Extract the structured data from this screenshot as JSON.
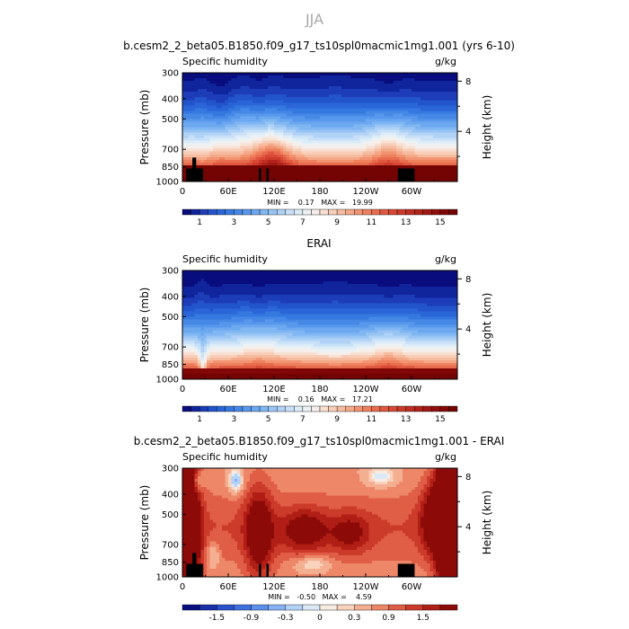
{
  "figure_title": "JJA",
  "chart_data": [
    {
      "type": "heatmap",
      "title": "b.cesm2_2_beta05.B1850.f09_g17_ts10spl0macmic1mg1.001 (yrs 6-10)",
      "left_label": "Specific humidity",
      "units": "g/kg",
      "ylabel": "Pressure (mb)",
      "ylabel_right": "Height (km)",
      "x_ticks": [
        "0",
        "60E",
        "120E",
        "180",
        "120W",
        "60W"
      ],
      "x_tick_lon": [
        0,
        60,
        120,
        180,
        240,
        300
      ],
      "xlim": [
        0,
        360
      ],
      "y_ticks": [
        "300",
        "400",
        "500",
        "700",
        "850",
        "1000"
      ],
      "y_tick_p": [
        300,
        400,
        500,
        700,
        850,
        1000
      ],
      "ylim": [
        1000,
        300
      ],
      "right_ticks": [
        "8",
        "4"
      ],
      "right_tick_km": [
        8,
        4
      ],
      "stats": "MIN =    0.17   MAX =   19.99",
      "min": 0.17,
      "max": 19.99,
      "field": "model",
      "colorbar_labels": [
        "1",
        "3",
        "5",
        "7",
        "9",
        "11",
        "13",
        "15"
      ],
      "colorbar_levels": [
        0.5,
        1,
        1.5,
        2,
        2.5,
        3,
        3.5,
        4,
        4.5,
        5,
        5.5,
        6,
        6.5,
        7,
        7.5,
        8,
        8.5,
        9,
        9.5,
        10,
        10.5,
        11,
        11.5,
        12,
        12.5,
        13,
        13.5,
        14,
        14.5,
        15,
        15.5,
        16
      ],
      "colors": [
        "#080c7c",
        "#10249c",
        "#1c3cb8",
        "#2254cc",
        "#2a66d8",
        "#3478e0",
        "#4688e6",
        "#5898ec",
        "#6ca8f0",
        "#80b6f2",
        "#98c4f4",
        "#b0d2f6",
        "#c8e0f8",
        "#dcecf8",
        "#ecf2f4",
        "#f6eeea",
        "#f8e0d2",
        "#f8ceb8",
        "#f6bca0",
        "#f4a888",
        "#f29472",
        "#ee805e",
        "#e86c4e",
        "#e05840",
        "#d84834",
        "#cc3a2a",
        "#be2e22",
        "#b0221a",
        "#a01812",
        "#900e0c",
        "#820808",
        "#740404"
      ]
    },
    {
      "type": "heatmap",
      "title": "ERAI",
      "left_label": "Specific humidity",
      "units": "g/kg",
      "ylabel": "Pressure (mb)",
      "ylabel_right": "Height (km)",
      "x_ticks": [
        "0",
        "60E",
        "120E",
        "180",
        "120W",
        "60W"
      ],
      "x_tick_lon": [
        0,
        60,
        120,
        180,
        240,
        300
      ],
      "xlim": [
        0,
        360
      ],
      "y_ticks": [
        "300",
        "400",
        "500",
        "700",
        "850",
        "1000"
      ],
      "y_tick_p": [
        300,
        400,
        500,
        700,
        850,
        1000
      ],
      "ylim": [
        1000,
        300
      ],
      "right_ticks": [
        "8",
        "4"
      ],
      "right_tick_km": [
        8,
        4
      ],
      "stats": "MIN =    0.16   MAX =   17.21",
      "min": 0.16,
      "max": 17.21,
      "field": "erai",
      "colorbar_labels": [
        "1",
        "3",
        "5",
        "7",
        "9",
        "11",
        "13",
        "15"
      ],
      "colorbar_levels": [
        0.5,
        1,
        1.5,
        2,
        2.5,
        3,
        3.5,
        4,
        4.5,
        5,
        5.5,
        6,
        6.5,
        7,
        7.5,
        8,
        8.5,
        9,
        9.5,
        10,
        10.5,
        11,
        11.5,
        12,
        12.5,
        13,
        13.5,
        14,
        14.5,
        15,
        15.5,
        16
      ],
      "colors": [
        "#080c7c",
        "#10249c",
        "#1c3cb8",
        "#2254cc",
        "#2a66d8",
        "#3478e0",
        "#4688e6",
        "#5898ec",
        "#6ca8f0",
        "#80b6f2",
        "#98c4f4",
        "#b0d2f6",
        "#c8e0f8",
        "#dcecf8",
        "#ecf2f4",
        "#f6eeea",
        "#f8e0d2",
        "#f8ceb8",
        "#f6bca0",
        "#f4a888",
        "#f29472",
        "#ee805e",
        "#e86c4e",
        "#e05840",
        "#d84834",
        "#cc3a2a",
        "#be2e22",
        "#b0221a",
        "#a01812",
        "#900e0c",
        "#820808",
        "#740404"
      ]
    },
    {
      "type": "heatmap",
      "title": "b.cesm2_2_beta05.B1850.f09_g17_ts10spl0macmic1mg1.001 - ERAI",
      "left_label": "Specific humidity",
      "units": "g/kg",
      "ylabel": "Pressure (mb)",
      "ylabel_right": "Height (km)",
      "x_ticks": [
        "0",
        "60E",
        "120E",
        "180",
        "120W",
        "60W"
      ],
      "x_tick_lon": [
        0,
        60,
        120,
        180,
        240,
        300
      ],
      "xlim": [
        0,
        360
      ],
      "y_ticks": [
        "300",
        "400",
        "500",
        "700",
        "850",
        "1000"
      ],
      "y_tick_p": [
        300,
        400,
        500,
        700,
        850,
        1000
      ],
      "ylim": [
        1000,
        300
      ],
      "right_ticks": [
        "8",
        "4"
      ],
      "right_tick_km": [
        8,
        4
      ],
      "stats": "MIN =   -0.50   MAX =    4.59",
      "min": -0.5,
      "max": 4.59,
      "field": "diff",
      "colorbar_labels": [
        "-1.5",
        "-0.9",
        "-0.3",
        "0",
        "0.3",
        "0.9",
        "1.5"
      ],
      "colorbar_levels": [
        -1.8,
        -1.5,
        -1.2,
        -0.9,
        -0.6,
        -0.3,
        -0.1,
        0,
        0.1,
        0.3,
        0.6,
        0.9,
        1.2,
        1.5,
        1.8
      ],
      "colors": [
        "#081080",
        "#1830a8",
        "#2a52cc",
        "#3e70de",
        "#5c90ea",
        "#86b2f2",
        "#b4d2f8",
        "#dceaf8",
        "#f8ece2",
        "#f8d2bc",
        "#f4ae90",
        "#ee8668",
        "#e05e46",
        "#cc3a2a",
        "#b01e16",
        "#8c0a08"
      ]
    }
  ]
}
